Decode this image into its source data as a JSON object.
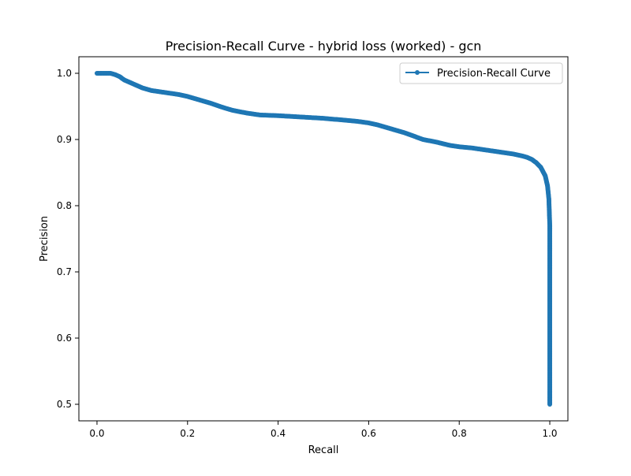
{
  "chart_data": {
    "type": "line",
    "title": "Precision-Recall Curve - hybrid loss (worked) - gcn",
    "xlabel": "Recall",
    "ylabel": "Precision",
    "xlim": [
      -0.04,
      1.04
    ],
    "ylim": [
      0.475,
      1.025
    ],
    "xticks": [
      0.0,
      0.2,
      0.4,
      0.6,
      0.8,
      1.0
    ],
    "xtick_labels": [
      "0.0",
      "0.2",
      "0.4",
      "0.6",
      "0.8",
      "1.0"
    ],
    "yticks": [
      0.5,
      0.6,
      0.7,
      0.8,
      0.9,
      1.0
    ],
    "ytick_labels": [
      "0.5",
      "0.6",
      "0.7",
      "0.8",
      "0.9",
      "1.0"
    ],
    "grid": false,
    "legend": {
      "position": "top-right",
      "entries": [
        "Precision-Recall Curve"
      ]
    },
    "series": [
      {
        "name": "Precision-Recall Curve",
        "color": "#1f77b4",
        "marker": "circle",
        "x": [
          0.0,
          0.01,
          0.02,
          0.03,
          0.04,
          0.05,
          0.06,
          0.08,
          0.1,
          0.12,
          0.15,
          0.18,
          0.2,
          0.22,
          0.25,
          0.28,
          0.3,
          0.33,
          0.36,
          0.4,
          0.45,
          0.5,
          0.55,
          0.58,
          0.6,
          0.62,
          0.65,
          0.68,
          0.7,
          0.72,
          0.75,
          0.78,
          0.8,
          0.83,
          0.86,
          0.88,
          0.9,
          0.92,
          0.94,
          0.95,
          0.96,
          0.97,
          0.98,
          0.99,
          0.995,
          0.998,
          1.0,
          1.0,
          1.0,
          1.0,
          1.0
        ],
        "y": [
          1.0,
          1.0,
          1.0,
          1.0,
          0.998,
          0.995,
          0.99,
          0.984,
          0.978,
          0.974,
          0.971,
          0.968,
          0.965,
          0.961,
          0.955,
          0.948,
          0.944,
          0.94,
          0.937,
          0.936,
          0.934,
          0.932,
          0.929,
          0.927,
          0.925,
          0.922,
          0.916,
          0.91,
          0.905,
          0.9,
          0.896,
          0.891,
          0.889,
          0.887,
          0.884,
          0.882,
          0.88,
          0.878,
          0.875,
          0.873,
          0.87,
          0.865,
          0.858,
          0.845,
          0.83,
          0.81,
          0.77,
          0.7,
          0.6,
          0.52,
          0.5
        ]
      }
    ]
  }
}
